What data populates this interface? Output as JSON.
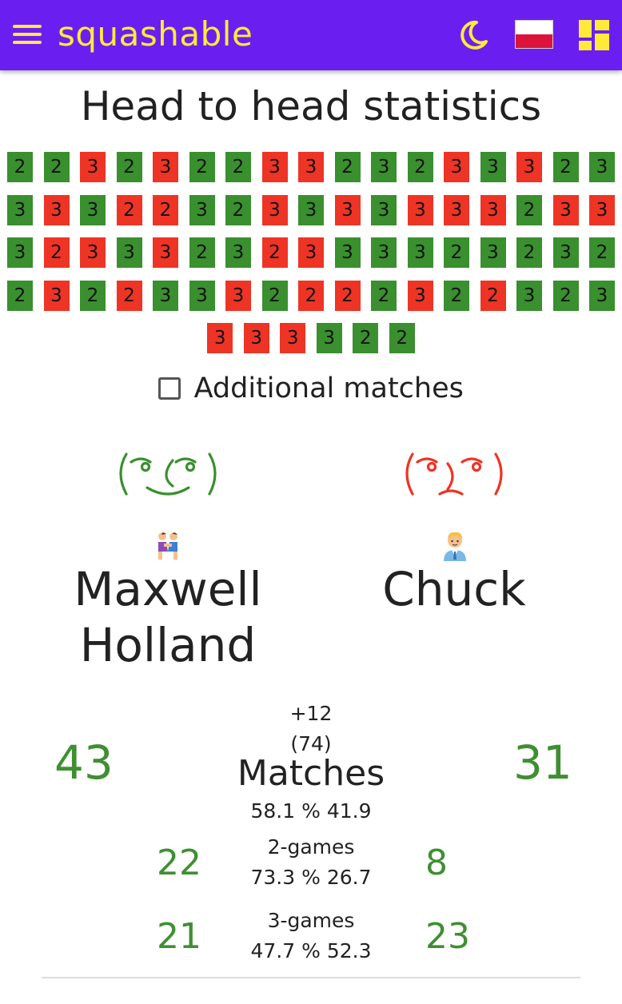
{
  "header": {
    "brand": "squashable",
    "accent_color": "#6a1ff0",
    "brand_color": "#ffea3a",
    "icons": [
      "menu-icon",
      "moon-icon",
      "polish-flag-icon",
      "dashboard-icon"
    ]
  },
  "title": "Head to head statistics",
  "results": [
    [
      {
        "v": "2",
        "w": true
      },
      {
        "v": "2",
        "w": true
      },
      {
        "v": "3",
        "w": false
      },
      {
        "v": "2",
        "w": true
      },
      {
        "v": "3",
        "w": false
      },
      {
        "v": "2",
        "w": true
      },
      {
        "v": "2",
        "w": true
      },
      {
        "v": "3",
        "w": false
      },
      {
        "v": "3",
        "w": false
      },
      {
        "v": "2",
        "w": true
      },
      {
        "v": "3",
        "w": true
      },
      {
        "v": "2",
        "w": true
      },
      {
        "v": "3",
        "w": false
      },
      {
        "v": "3",
        "w": true
      },
      {
        "v": "3",
        "w": false
      },
      {
        "v": "2",
        "w": true
      },
      {
        "v": "3",
        "w": true
      }
    ],
    [
      {
        "v": "3",
        "w": true
      },
      {
        "v": "3",
        "w": false
      },
      {
        "v": "3",
        "w": true
      },
      {
        "v": "2",
        "w": false
      },
      {
        "v": "2",
        "w": false
      },
      {
        "v": "3",
        "w": true
      },
      {
        "v": "2",
        "w": true
      },
      {
        "v": "3",
        "w": false
      },
      {
        "v": "3",
        "w": true
      },
      {
        "v": "3",
        "w": false
      },
      {
        "v": "3",
        "w": true
      },
      {
        "v": "3",
        "w": false
      },
      {
        "v": "3",
        "w": false
      },
      {
        "v": "3",
        "w": false
      },
      {
        "v": "2",
        "w": true
      },
      {
        "v": "3",
        "w": false
      },
      {
        "v": "3",
        "w": false
      }
    ],
    [
      {
        "v": "3",
        "w": true
      },
      {
        "v": "2",
        "w": false
      },
      {
        "v": "3",
        "w": false
      },
      {
        "v": "3",
        "w": true
      },
      {
        "v": "3",
        "w": false
      },
      {
        "v": "2",
        "w": true
      },
      {
        "v": "3",
        "w": true
      },
      {
        "v": "2",
        "w": false
      },
      {
        "v": "3",
        "w": false
      },
      {
        "v": "3",
        "w": true
      },
      {
        "v": "3",
        "w": true
      },
      {
        "v": "3",
        "w": true
      },
      {
        "v": "2",
        "w": true
      },
      {
        "v": "3",
        "w": true
      },
      {
        "v": "2",
        "w": true
      },
      {
        "v": "3",
        "w": true
      },
      {
        "v": "2",
        "w": true
      }
    ],
    [
      {
        "v": "2",
        "w": true
      },
      {
        "v": "3",
        "w": false
      },
      {
        "v": "2",
        "w": true
      },
      {
        "v": "2",
        "w": false
      },
      {
        "v": "3",
        "w": true
      },
      {
        "v": "3",
        "w": true
      },
      {
        "v": "3",
        "w": false
      },
      {
        "v": "2",
        "w": true
      },
      {
        "v": "2",
        "w": false
      },
      {
        "v": "2",
        "w": false
      },
      {
        "v": "2",
        "w": true
      },
      {
        "v": "3",
        "w": false
      },
      {
        "v": "2",
        "w": true
      },
      {
        "v": "2",
        "w": false
      },
      {
        "v": "3",
        "w": true
      },
      {
        "v": "2",
        "w": true
      },
      {
        "v": "3",
        "w": true
      }
    ],
    [
      {
        "v": "3",
        "w": false
      },
      {
        "v": "3",
        "w": false
      },
      {
        "v": "3",
        "w": false
      },
      {
        "v": "3",
        "w": true
      },
      {
        "v": "2",
        "w": true
      },
      {
        "v": "2",
        "w": true
      }
    ]
  ],
  "result_colors": {
    "win": "#3a8f2f",
    "loss": "#ee3425"
  },
  "additional_matches": {
    "label": "Additional matches",
    "checked": false
  },
  "player1": {
    "name_line1": "Maxwell",
    "name_line2": "Holland",
    "face": "lenny-face-happy-icon",
    "emoji": "wrestlers-icon",
    "color": "#3a8f2f"
  },
  "player2": {
    "name": "Chuck",
    "face": "lenny-face-sad-icon",
    "emoji": "office-worker-icon",
    "color": "#ee3425"
  },
  "stats": {
    "matches": {
      "left": "43",
      "right": "31",
      "diff": "+12",
      "total": "(74)",
      "label": "Matches",
      "pct": "58.1 % 41.9"
    },
    "two_games": {
      "left": "22",
      "right": "8",
      "label": "2-games",
      "pct": "73.3 % 26.7"
    },
    "three_games": {
      "left": "21",
      "right": "23",
      "label": "3-games",
      "pct": "47.7 % 52.3"
    }
  }
}
